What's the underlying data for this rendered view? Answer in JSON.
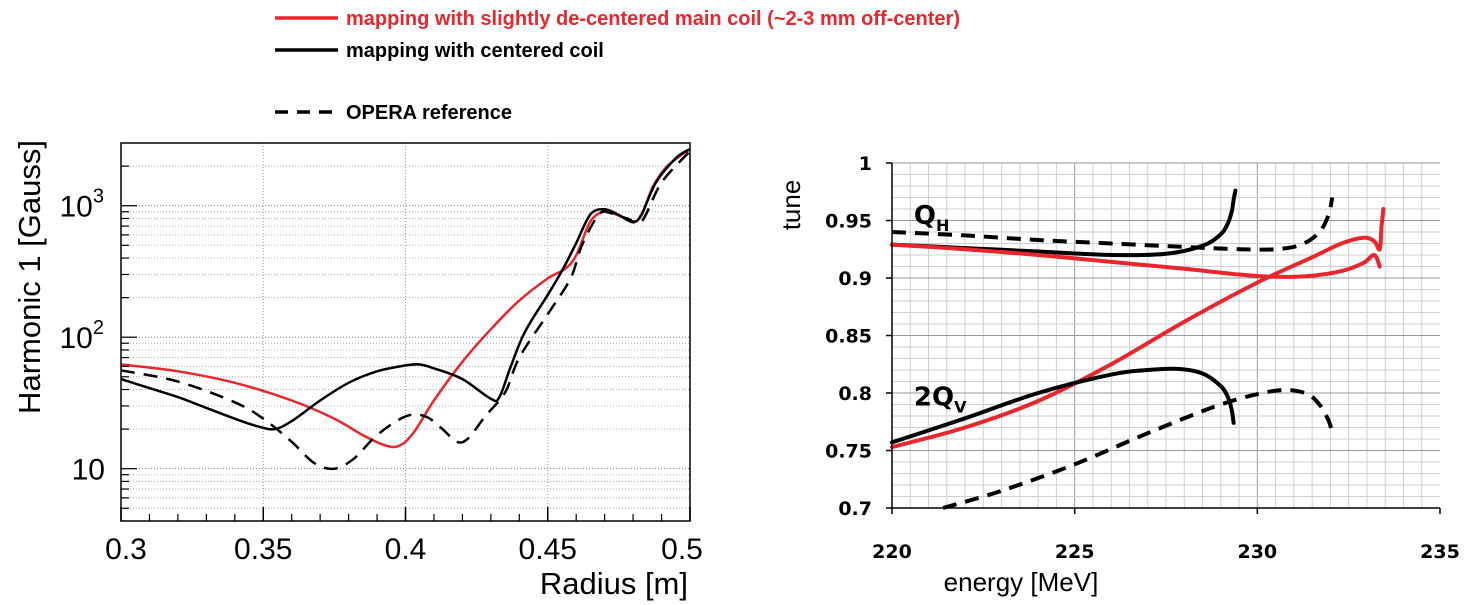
{
  "legend": {
    "red_label": "mapping with slightly de-centered main coil (~2-3 mm off-center)",
    "black_label": "mapping with centered coil",
    "dashed_label": "OPERA reference",
    "red_color": "#e8262e",
    "black_color": "#000000"
  },
  "chart_data": [
    {
      "type": "line",
      "xlabel": "Radius [m]",
      "ylabel": "Harmonic 1 [Gauss]",
      "xlim": [
        0.3,
        0.5
      ],
      "ylim": [
        4,
        3000
      ],
      "yscale": "log",
      "grid": true,
      "x_ticks": [
        "0.3",
        "0.35",
        "0.4",
        "0.45",
        "0.5"
      ],
      "y_ticks": [
        {
          "value": 10,
          "label": "10",
          "sup": ""
        },
        {
          "value": 100,
          "label": "10",
          "sup": "2"
        },
        {
          "value": 1000,
          "label": "10",
          "sup": "3"
        }
      ],
      "series": [
        {
          "name": "mapping with slightly de-centered main coil (~2-3 mm off-center)",
          "style": "red-solid",
          "x": [
            0.3,
            0.32,
            0.34,
            0.36,
            0.375,
            0.385,
            0.393,
            0.398,
            0.403,
            0.41,
            0.42,
            0.43,
            0.44,
            0.45,
            0.456,
            0.46,
            0.465,
            0.47,
            0.475,
            0.48,
            0.483,
            0.487,
            0.492,
            0.5
          ],
          "y": [
            62,
            55,
            45,
            33,
            24,
            18,
            15,
            15,
            19,
            33,
            65,
            115,
            190,
            280,
            330,
            420,
            760,
            900,
            840,
            760,
            850,
            1400,
            2000,
            2700
          ]
        },
        {
          "name": "mapping with centered coil",
          "style": "black-solid",
          "x": [
            0.3,
            0.31,
            0.32,
            0.33,
            0.34,
            0.348,
            0.354,
            0.36,
            0.37,
            0.38,
            0.39,
            0.4,
            0.405,
            0.41,
            0.42,
            0.43,
            0.433,
            0.437,
            0.442,
            0.45,
            0.455,
            0.46,
            0.465,
            0.47,
            0.475,
            0.48,
            0.483,
            0.488,
            0.495,
            0.5
          ],
          "y": [
            48,
            41,
            35,
            29,
            24,
            21,
            20,
            23,
            33,
            45,
            55,
            61,
            62,
            58,
            48,
            34,
            35,
            60,
            110,
            210,
            320,
            520,
            860,
            940,
            850,
            750,
            860,
            1500,
            2300,
            2700
          ]
        },
        {
          "name": "OPERA reference",
          "style": "black-dashed",
          "x": [
            0.3,
            0.32,
            0.34,
            0.35,
            0.36,
            0.368,
            0.375,
            0.382,
            0.39,
            0.4,
            0.407,
            0.413,
            0.418,
            0.422,
            0.428,
            0.435,
            0.44,
            0.45,
            0.458,
            0.462,
            0.468,
            0.472,
            0.478,
            0.483,
            0.49,
            0.5
          ],
          "y": [
            56,
            46,
            32,
            24,
            16,
            11,
            10,
            12,
            18,
            25,
            25,
            20,
            16,
            17,
            25,
            38,
            70,
            150,
            280,
            500,
            860,
            880,
            800,
            760,
            1500,
            2600
          ]
        }
      ]
    },
    {
      "type": "line",
      "xlabel": "energy [MeV]",
      "ylabel": "tune",
      "xlim": [
        220,
        235
      ],
      "ylim": [
        0.7,
        1
      ],
      "grid": true,
      "x_ticks": [
        "220",
        "225",
        "230",
        "235"
      ],
      "y_ticks": [
        "0.7",
        "0.75",
        "0.8",
        "0.85",
        "0.9",
        "0.95",
        "1"
      ],
      "annotations": [
        {
          "text": "Q",
          "sub": "H",
          "x": 220.6,
          "y": 0.955
        },
        {
          "text": "2Q",
          "sub": "V",
          "x": 220.6,
          "y": 0.797
        }
      ],
      "series": [
        {
          "name": "Q_H black solid",
          "style": "black-solid",
          "x": [
            220,
            222,
            224,
            226,
            227.5,
            228.5,
            229.0,
            229.2,
            229.3,
            229.35,
            229.4
          ],
          "y": [
            0.929,
            0.926,
            0.923,
            0.92,
            0.921,
            0.928,
            0.938,
            0.948,
            0.958,
            0.968,
            0.976
          ]
        },
        {
          "name": "Q_H dashed",
          "style": "black-dashed",
          "x": [
            220,
            222,
            224,
            226,
            228,
            229.5,
            230.5,
            231.2,
            231.7,
            231.95,
            232.05
          ],
          "y": [
            0.94,
            0.937,
            0.933,
            0.93,
            0.927,
            0.925,
            0.925,
            0.929,
            0.94,
            0.955,
            0.97
          ]
        },
        {
          "name": "Q_H red",
          "style": "red-solid",
          "x": [
            220,
            222,
            224,
            226,
            228,
            229.5,
            230.5,
            231.5,
            232.3,
            232.9,
            233.2,
            233.35
          ],
          "y": [
            0.929,
            0.925,
            0.92,
            0.914,
            0.908,
            0.903,
            0.901,
            0.902,
            0.906,
            0.913,
            0.92,
            0.91
          ]
        },
        {
          "name": "2Q_V red",
          "style": "red-solid",
          "x": [
            220,
            222,
            224,
            226,
            228,
            230,
            231.5,
            232.3,
            232.9,
            233.2,
            233.35,
            233.4,
            233.45
          ],
          "y": [
            0.753,
            0.77,
            0.793,
            0.825,
            0.862,
            0.896,
            0.918,
            0.93,
            0.935,
            0.932,
            0.925,
            0.945,
            0.96
          ]
        },
        {
          "name": "2Q_V black solid",
          "style": "black-solid",
          "x": [
            220,
            222,
            224,
            226,
            227,
            227.8,
            228.5,
            229.0,
            229.2,
            229.3,
            229.35
          ],
          "y": [
            0.757,
            0.778,
            0.8,
            0.816,
            0.82,
            0.821,
            0.817,
            0.806,
            0.796,
            0.785,
            0.774
          ]
        },
        {
          "name": "2Q_V dashed",
          "style": "black-dashed",
          "x": [
            221.4,
            223,
            225,
            227,
            229,
            230.5,
            231.3,
            231.7,
            231.95,
            232.05
          ],
          "y": [
            0.7,
            0.715,
            0.738,
            0.765,
            0.79,
            0.802,
            0.8,
            0.79,
            0.776,
            0.765
          ]
        }
      ]
    }
  ]
}
